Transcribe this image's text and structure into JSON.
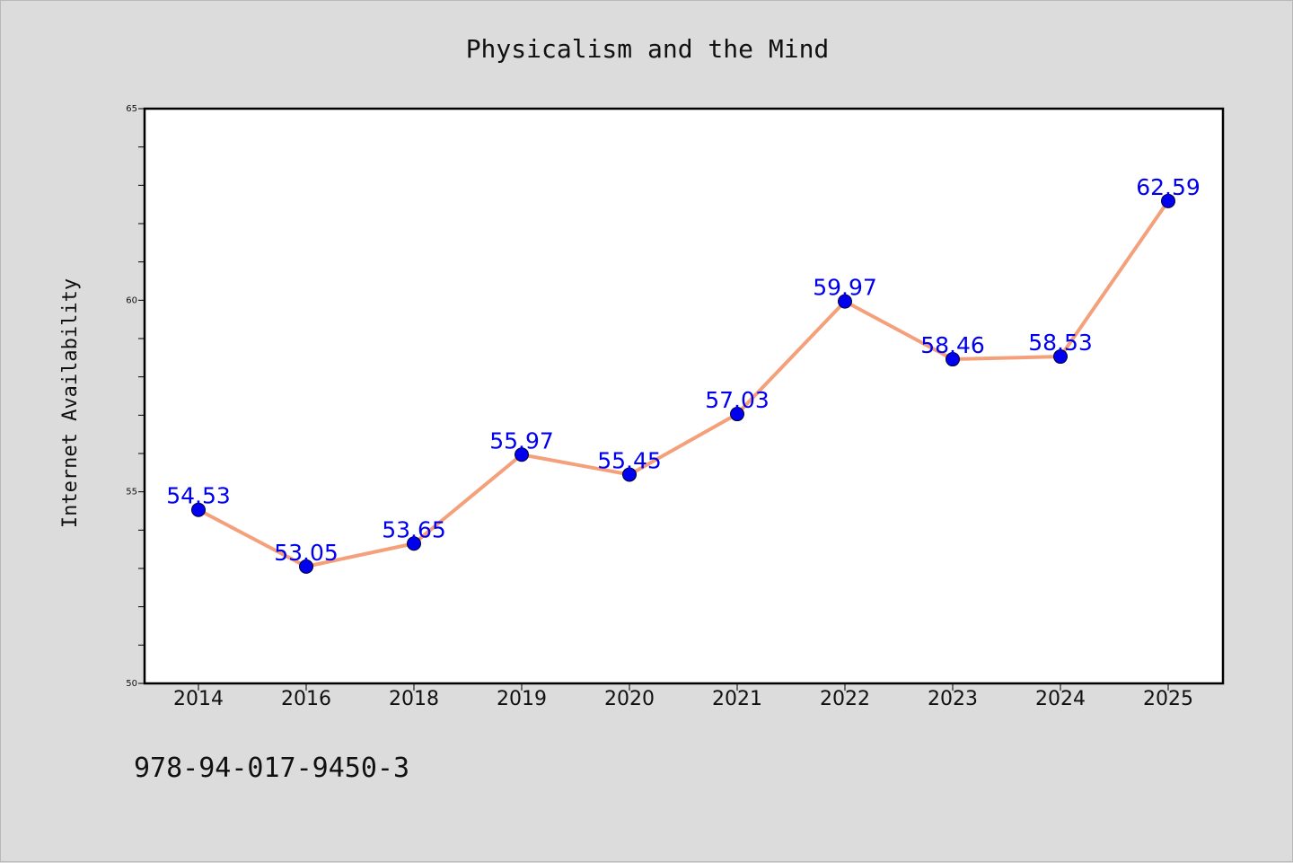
{
  "footer_text": "978-94-017-9450-3",
  "colors": {
    "background": "#dcdcdc",
    "plot_background": "#ffffff",
    "line": "#f4a07a",
    "marker": "#0000ee",
    "data_label": "#0000ee"
  },
  "chart_data": {
    "type": "line",
    "title": "Physicalism and the Mind",
    "xlabel": "",
    "ylabel": "Internet Availability",
    "categories": [
      "2014",
      "2016",
      "2018",
      "2019",
      "2020",
      "2021",
      "2022",
      "2023",
      "2024",
      "2025"
    ],
    "series": [
      {
        "values": [
          54.53,
          53.05,
          53.65,
          55.97,
          55.45,
          57.03,
          59.97,
          58.46,
          58.53,
          62.59
        ],
        "labels": [
          "54.53",
          "53.05",
          "53.65",
          "55.97",
          "55.45",
          "57.03",
          "59.97",
          "58.46",
          "58.53",
          "62.59"
        ]
      }
    ],
    "ylim": [
      50,
      65
    ],
    "yticks": [
      "50",
      "55",
      "60",
      "65"
    ],
    "y_minor_step": 1,
    "grid": false,
    "legend": "none"
  }
}
